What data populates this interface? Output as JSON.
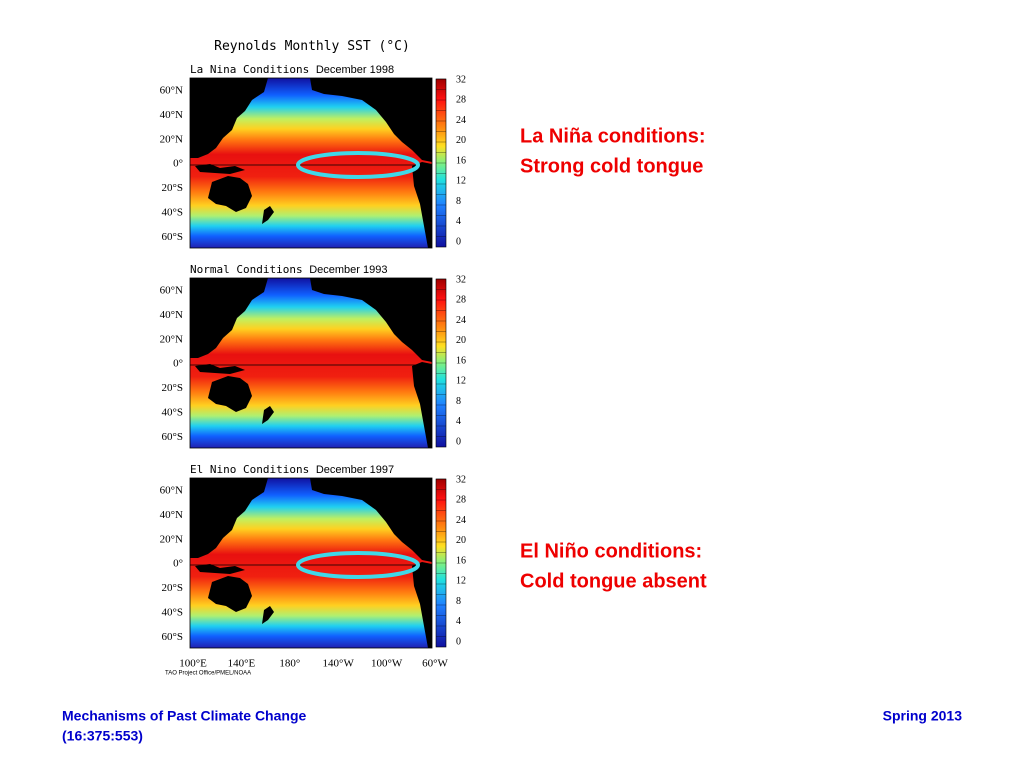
{
  "figure": {
    "title": "Reynolds Monthly SST",
    "unit": "(°C)",
    "panels": [
      {
        "condition": "La Nina Conditions",
        "date": "December 1998"
      },
      {
        "condition": "Normal Conditions",
        "date": "December 1993"
      },
      {
        "condition": "El Nino Conditions",
        "date": "December 1997"
      }
    ],
    "lat_labels": [
      "60°N",
      "40°N",
      "20°N",
      "0°",
      "20°S",
      "40°S",
      "60°S"
    ],
    "colorbar_ticks": [
      32,
      28,
      24,
      20,
      16,
      12,
      8,
      4,
      0
    ],
    "lon_labels": [
      "100°E",
      "140°E",
      "180°",
      "140°W",
      "100°W",
      "60°W"
    ],
    "credit": "TAO Project Office/PMEL/NOAA"
  },
  "annotations": [
    {
      "line1": "La Niña conditions:",
      "line2": "Strong cold tongue"
    },
    {
      "line1": "El Niño conditions:",
      "line2": "Cold tongue absent"
    }
  ],
  "footer": {
    "course": "Mechanisms of Past Climate Change",
    "code": "(16:375:553)",
    "term": "Spring 2013"
  }
}
